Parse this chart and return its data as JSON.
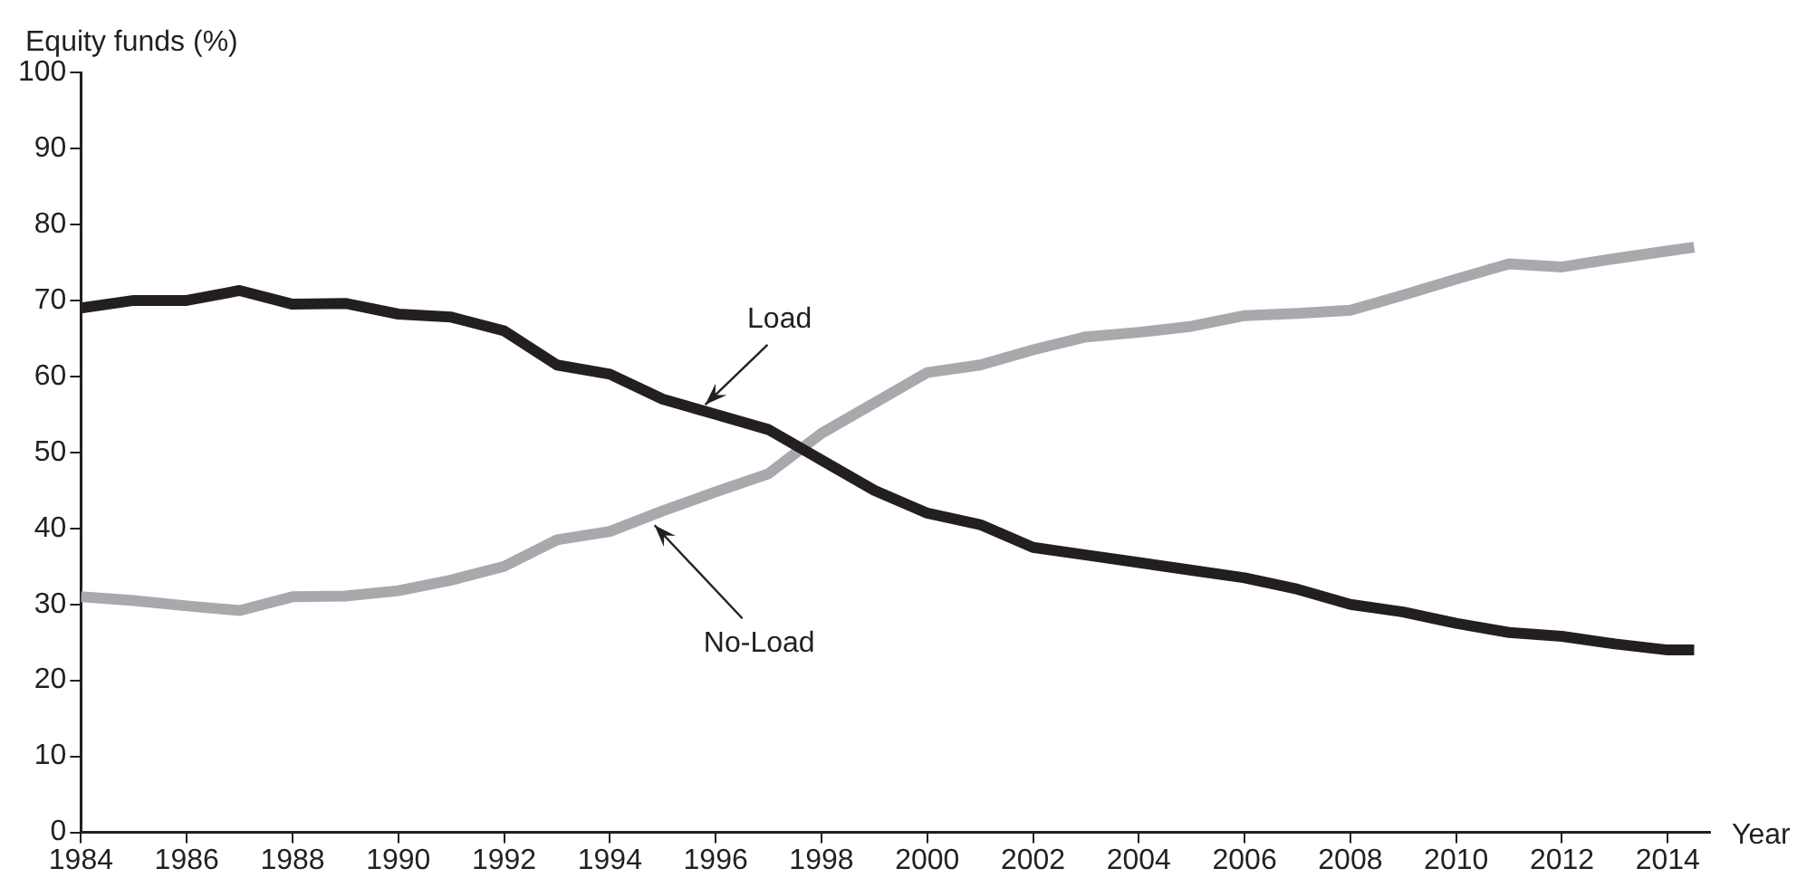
{
  "chart_data": {
    "type": "line",
    "xlabel": "Year",
    "ylabel": "Equity funds (%)",
    "x": [
      1984,
      1985,
      1986,
      1987,
      1988,
      1989,
      1990,
      1991,
      1992,
      1993,
      1994,
      1995,
      1996,
      1997,
      1998,
      1999,
      2000,
      2001,
      2002,
      2003,
      2004,
      2005,
      2006,
      2007,
      2008,
      2009,
      2010,
      2011,
      2012,
      2013,
      2014,
      2014.5
    ],
    "series": [
      {
        "name": "Load",
        "color": "#231f20",
        "values": [
          69,
          70,
          70,
          71.3,
          69.5,
          69.6,
          68.2,
          67.8,
          66,
          61.5,
          60.3,
          57,
          55,
          53,
          49,
          45,
          42,
          40.5,
          37.5,
          36.5,
          35.5,
          34.5,
          33.5,
          32,
          30,
          29,
          27.5,
          26.3,
          25.8,
          24.8,
          24,
          24
        ]
      },
      {
        "name": "No-Load",
        "color": "#a7a9ac",
        "values": [
          31,
          30.5,
          29.8,
          29.2,
          31,
          31.1,
          31.8,
          33.2,
          35,
          38.5,
          39.6,
          42.3,
          44.8,
          47.2,
          52.5,
          56.5,
          60.5,
          61.5,
          63.5,
          65.2,
          65.8,
          66.6,
          68,
          68.3,
          68.7,
          70.7,
          72.8,
          74.8,
          74.4,
          75.5,
          76.5,
          77
        ]
      }
    ],
    "xlim": [
      1984,
      2014.8
    ],
    "ylim": [
      0,
      100
    ],
    "xticks": [
      1984,
      1986,
      1988,
      1990,
      1992,
      1994,
      1996,
      1998,
      2000,
      2002,
      2004,
      2006,
      2008,
      2010,
      2012,
      2014
    ],
    "yticks": [
      0,
      10,
      20,
      30,
      40,
      50,
      60,
      70,
      80,
      90,
      100
    ],
    "grid": false,
    "legend": false,
    "marker": "none",
    "line_style": "solid"
  }
}
